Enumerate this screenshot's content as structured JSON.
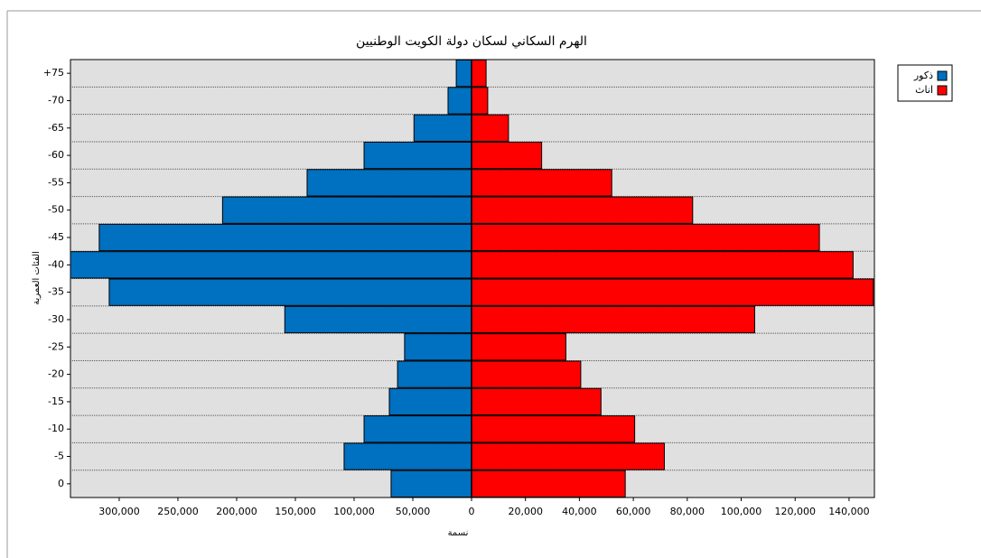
{
  "chart_data": {
    "type": "pyramid",
    "title": "الهرم السكاني لسكان دولة الكويت الوطنيين",
    "y_label": "الفئات العمرية",
    "x_label": "نسمة",
    "categories": [
      "+75",
      "-70",
      "-65",
      "-60",
      "-55",
      "-50",
      "-45",
      "-40",
      "-35",
      "-30",
      "-25",
      "-20",
      "-15",
      "-10",
      "-5",
      "0"
    ],
    "grid": true,
    "legend": "top-right",
    "series": [
      {
        "name": "ذكور",
        "color": "#0070c0",
        "side": "left",
        "values": [
          13000,
          20000,
          49000,
          91500,
          140000,
          212000,
          317000,
          341500,
          308500,
          159000,
          57000,
          63000,
          70000,
          91500,
          108500,
          68500
        ],
        "xlim": [
          0,
          341500
        ],
        "xticks": [
          0,
          {
            "value": 50000,
            "label": "50,000"
          },
          {
            "value": 100000,
            "label": "100,000"
          },
          {
            "value": 150000,
            "label": "150,000"
          },
          {
            "value": 200000,
            "label": "200,000"
          },
          {
            "value": 250000,
            "label": "250,000"
          },
          {
            "value": 300000,
            "label": "300,000"
          }
        ]
      },
      {
        "name": "اناث",
        "color": "#ff0000",
        "side": "right",
        "values": [
          5400,
          6000,
          13700,
          26000,
          52000,
          82000,
          129000,
          141500,
          149000,
          105000,
          35000,
          40500,
          48000,
          60500,
          71500,
          57000
        ],
        "xlim": [
          0,
          149400
        ],
        "xticks": [
          {
            "value": 20000,
            "label": "20,000"
          },
          {
            "value": 40000,
            "label": "40,000"
          },
          {
            "value": 60000,
            "label": "60,000"
          },
          {
            "value": 80000,
            "label": "80,000"
          },
          {
            "value": 100000,
            "label": "100,000"
          },
          {
            "value": 120000,
            "label": "120,000"
          },
          {
            "value": 140000,
            "label": "140,000"
          }
        ]
      }
    ]
  }
}
